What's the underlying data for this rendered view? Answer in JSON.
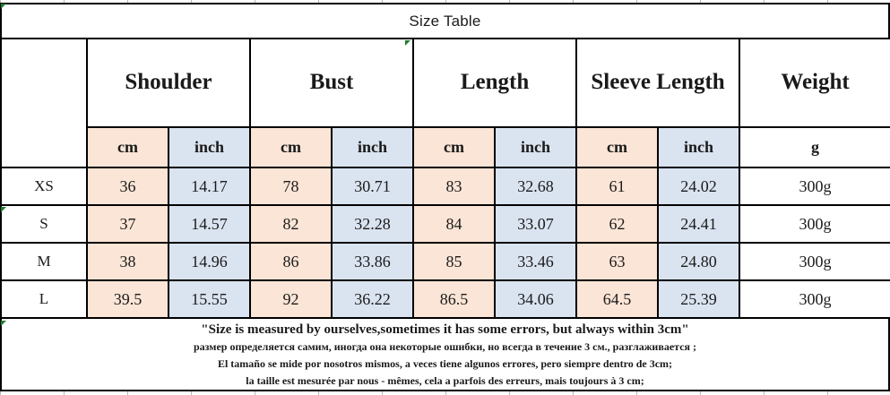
{
  "sheet": {
    "title": "Size Table"
  },
  "table": {
    "groups": [
      {
        "label": "Shoulder"
      },
      {
        "label": "Bust"
      },
      {
        "label": "Length"
      },
      {
        "label": "Sleeve Length"
      },
      {
        "label": "Weight"
      }
    ],
    "units": {
      "cm": "cm",
      "inch": "inch",
      "g": "g"
    },
    "rows": [
      {
        "size": "XS",
        "shoulder_cm": "36",
        "shoulder_inch": "14.17",
        "bust_cm": "78",
        "bust_inch": "30.71",
        "length_cm": "83",
        "length_inch": "32.68",
        "sleeve_cm": "61",
        "sleeve_inch": "24.02",
        "weight": "300g"
      },
      {
        "size": "S",
        "shoulder_cm": "37",
        "shoulder_inch": "14.57",
        "bust_cm": "82",
        "bust_inch": "32.28",
        "length_cm": "84",
        "length_inch": "33.07",
        "sleeve_cm": "62",
        "sleeve_inch": "24.41",
        "weight": "300g"
      },
      {
        "size": "M",
        "shoulder_cm": "38",
        "shoulder_inch": "14.96",
        "bust_cm": "86",
        "bust_inch": "33.86",
        "length_cm": "85",
        "length_inch": "33.46",
        "sleeve_cm": "63",
        "sleeve_inch": "24.80",
        "weight": "300g"
      },
      {
        "size": "L",
        "shoulder_cm": "39.5",
        "shoulder_inch": "15.55",
        "bust_cm": "92",
        "bust_inch": "36.22",
        "length_cm": "86.5",
        "length_inch": "34.06",
        "sleeve_cm": "64.5",
        "sleeve_inch": "25.39",
        "weight": "300g"
      }
    ]
  },
  "notes": {
    "en": "\"Size is measured by ourselves,sometimes it has some errors, but always within 3cm\"",
    "ru": "размер определяется самим, иногда она некоторые ошибки, но всегда в течение 3 см., разглаживается ;",
    "es": "El tamaño se mide por nosotros mismos, a veces tiene algunos errores, pero siempre dentro de 3cm;",
    "fr": "la taille est mesurée par nous - mêmes, cela a parfois des erreurs, mais toujours à 3 cm;"
  },
  "colors": {
    "cm_column_bg": "#fbe5d6",
    "inch_column_bg": "#dae3f0",
    "border": "#000000",
    "comment_marker_green": "#1e7d32"
  }
}
